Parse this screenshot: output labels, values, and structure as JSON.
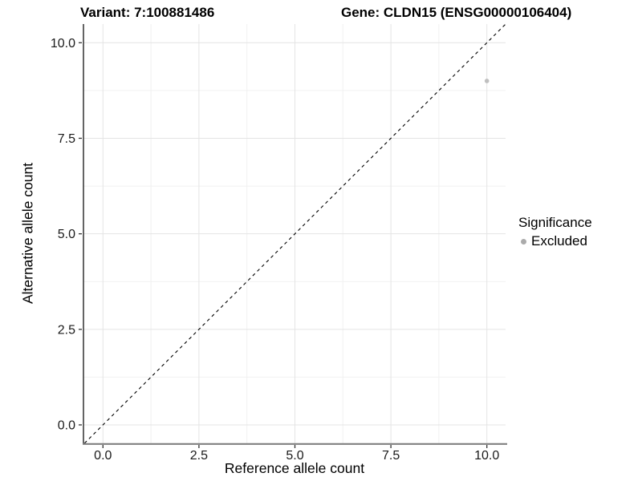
{
  "title": {
    "left": "Variant: 7:100881486",
    "right": "Gene: CLDN15 (ENSG00000106404)"
  },
  "axes": {
    "x_label": "Reference allele count",
    "y_label": "Alternative allele count"
  },
  "legend": {
    "title": "Significance",
    "position": "right",
    "entries": [
      {
        "label": "Excluded",
        "color": "#ababab"
      }
    ]
  },
  "chart_data": {
    "type": "scatter",
    "titles": [
      "Variant: 7:100881486",
      "Gene: CLDN15 (ENSG00000106404)"
    ],
    "xlabel": "Reference allele count",
    "ylabel": "Alternative allele count",
    "xlim": [
      -0.5,
      10.5
    ],
    "ylim": [
      -0.5,
      10.5
    ],
    "x_tick_values": [
      0,
      2.5,
      5,
      7.5,
      10
    ],
    "x_tick_labels": [
      "0.0",
      "2.5",
      "5.0",
      "7.5",
      "10.0"
    ],
    "y_tick_values": [
      0,
      2.5,
      5,
      7.5,
      10
    ],
    "y_tick_labels": [
      "0.0",
      "2.5",
      "5.0",
      "7.5",
      "10.0"
    ],
    "x_minor_gridlines": [
      1.25,
      3.75,
      6.25,
      8.75
    ],
    "y_minor_gridlines": [
      1.25,
      3.75,
      6.25,
      8.75
    ],
    "grid": "major+minor",
    "legend_title": "Significance",
    "legend_position": "right",
    "series": [
      {
        "name": "Excluded",
        "color": "#bfbfbf",
        "points": [
          [
            10,
            9
          ]
        ]
      }
    ],
    "reference_line": {
      "slope": 1,
      "intercept": 0,
      "linetype": "dashed",
      "color": "#000000"
    }
  },
  "colors": {
    "background": "#ffffff",
    "grid_major": "#e4e4e4",
    "grid_minor": "#f1f1f1",
    "axis_line_left": "#3d3d3d",
    "axis_line_bottom": "#808080",
    "tick": "#333333",
    "tick_label": "#1a1a1a",
    "point": "#bfbfbf",
    "dashed_line": "#000000"
  }
}
